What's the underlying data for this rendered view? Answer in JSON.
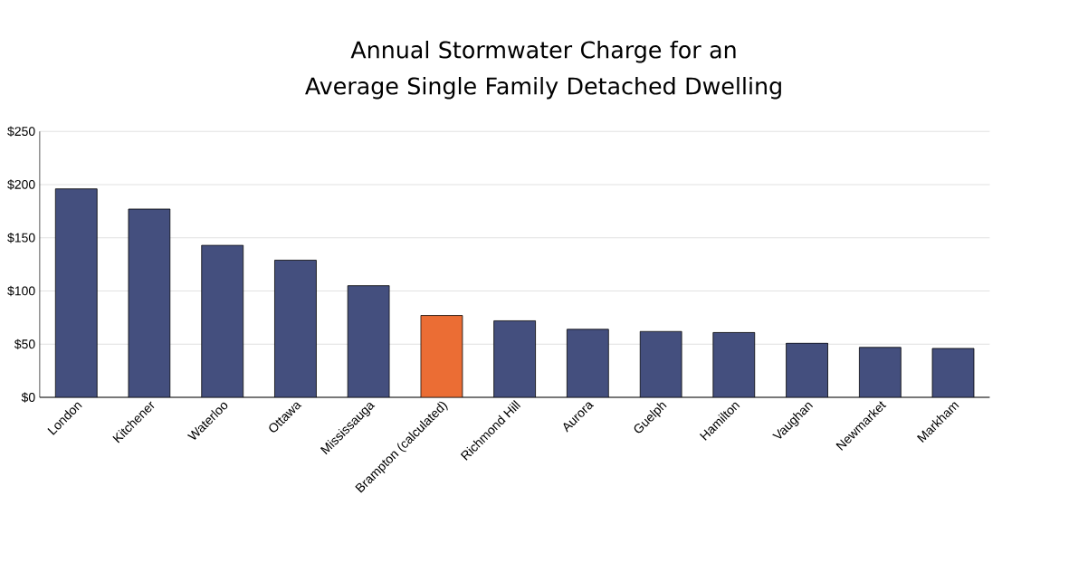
{
  "chart_data": {
    "type": "bar",
    "title": "Annual Stormwater Charge for an Average Single Family Detached Dwelling",
    "categories": [
      "London",
      "Kitchener",
      "Waterloo",
      "Ottawa",
      "Mississauga",
      "Brampton (calculated)",
      "Richmond Hill",
      "Aurora",
      "Guelph",
      "Hamilton",
      "Vaughan",
      "Newmarket",
      "Markham"
    ],
    "values": [
      196,
      177,
      143,
      129,
      105,
      77,
      72,
      64,
      62,
      61,
      51,
      47,
      46
    ],
    "colors": [
      "#444f7e",
      "#444f7e",
      "#444f7e",
      "#444f7e",
      "#444f7e",
      "#eb6d34",
      "#444f7e",
      "#444f7e",
      "#444f7e",
      "#444f7e",
      "#444f7e",
      "#444f7e",
      "#444f7e"
    ],
    "ylim": [
      0,
      250
    ],
    "yticks": [
      {
        "value": 0,
        "label": "$0"
      },
      {
        "value": 50,
        "label": "$50"
      },
      {
        "value": 100,
        "label": "$100"
      },
      {
        "value": 150,
        "label": "$150"
      },
      {
        "value": 200,
        "label": "$200"
      },
      {
        "value": 250,
        "label": "$250"
      }
    ],
    "grid": "y"
  }
}
